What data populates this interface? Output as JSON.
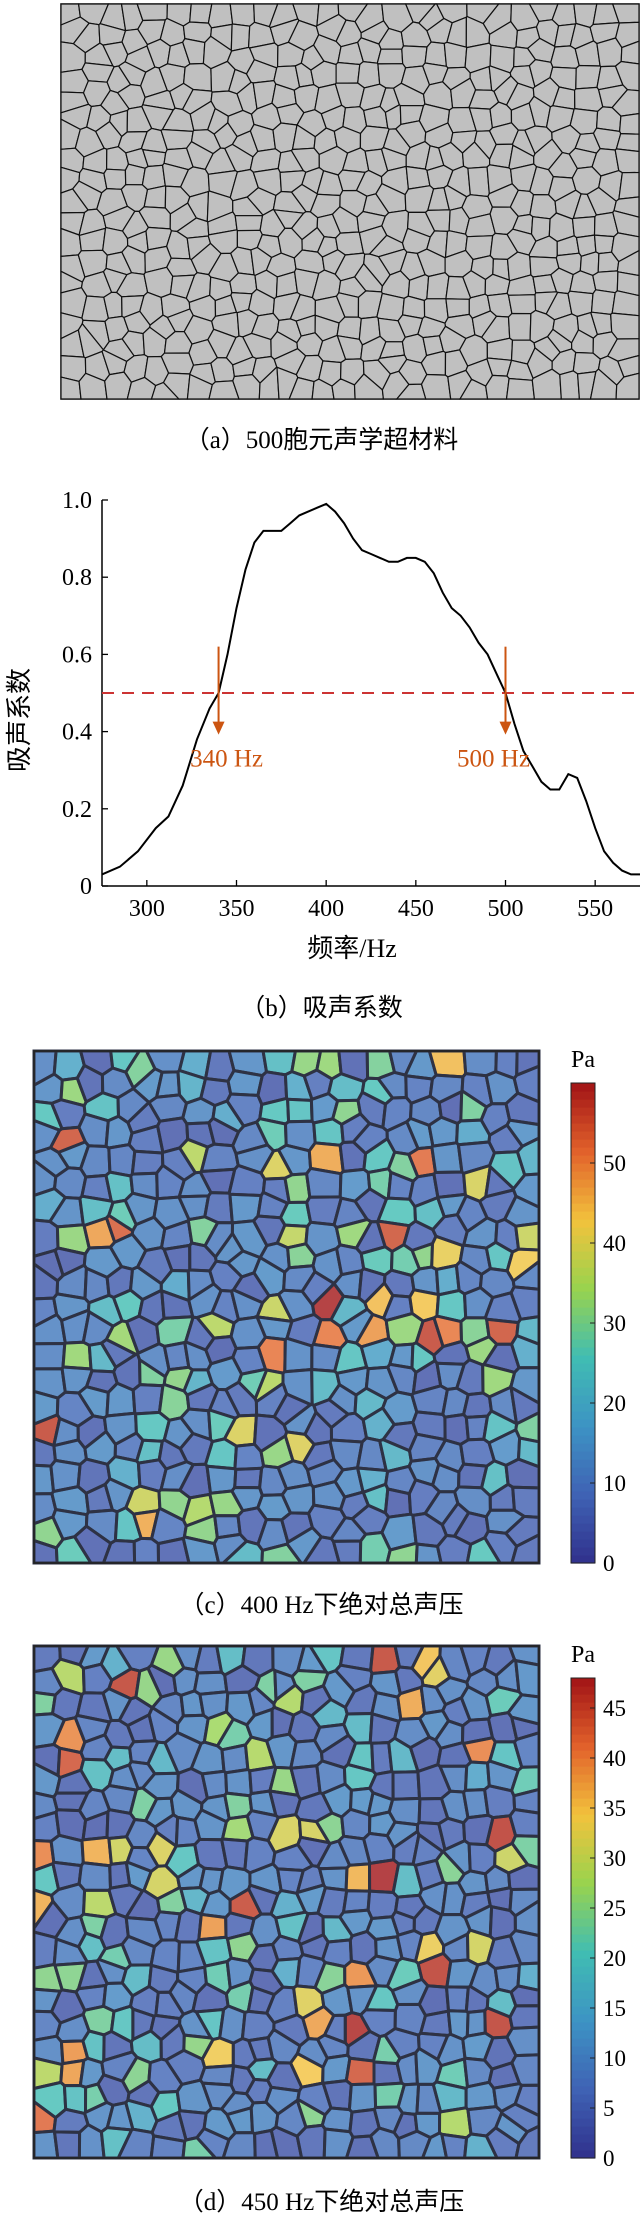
{
  "panel_a": {
    "caption": "（a）500胞元声学超材料",
    "fill_color": "#c0c0c0",
    "edge_color": "#111111"
  },
  "chart_data": [
    {
      "type": "line",
      "caption": "（b）吸声系数",
      "xlabel": "频率/Hz",
      "ylabel": "吸声系数",
      "xlim": [
        275,
        575
      ],
      "ylim": [
        0,
        1.0
      ],
      "xticks": [
        300,
        350,
        400,
        450,
        500,
        550
      ],
      "yticks": [
        0,
        0.2,
        0.4,
        0.6,
        0.8,
        1.0
      ],
      "ytick_labels": [
        "0",
        "0.2",
        "0.4",
        "0.6",
        "0.8",
        "1.0"
      ],
      "grid": false,
      "series": [
        {
          "color": "#000000",
          "x": [
            275,
            285,
            295,
            305,
            312,
            320,
            328,
            335,
            340,
            345,
            350,
            355,
            360,
            365,
            370,
            375,
            380,
            385,
            390,
            395,
            400,
            405,
            410,
            415,
            420,
            425,
            430,
            435,
            440,
            445,
            450,
            455,
            460,
            465,
            470,
            475,
            480,
            485,
            490,
            495,
            500,
            505,
            510,
            515,
            520,
            525,
            530,
            535,
            540,
            545,
            550,
            555,
            560,
            565,
            570,
            575
          ],
          "y": [
            0.03,
            0.05,
            0.09,
            0.15,
            0.18,
            0.26,
            0.38,
            0.46,
            0.5,
            0.6,
            0.72,
            0.82,
            0.89,
            0.92,
            0.92,
            0.92,
            0.94,
            0.96,
            0.97,
            0.98,
            0.99,
            0.97,
            0.94,
            0.9,
            0.87,
            0.86,
            0.85,
            0.84,
            0.84,
            0.85,
            0.85,
            0.84,
            0.81,
            0.76,
            0.72,
            0.7,
            0.67,
            0.63,
            0.6,
            0.55,
            0.5,
            0.42,
            0.35,
            0.31,
            0.27,
            0.25,
            0.25,
            0.29,
            0.28,
            0.22,
            0.15,
            0.09,
            0.06,
            0.04,
            0.03,
            0.03
          ]
        }
      ],
      "reference_line": {
        "y": 0.5,
        "color": "#cc3333",
        "style": "dashed"
      },
      "annotations": [
        {
          "x": 340,
          "label": "340 Hz",
          "color": "#cc5511"
        },
        {
          "x": 500,
          "label": "500 Hz",
          "color": "#cc5511"
        }
      ]
    },
    {
      "type": "heatmap",
      "caption": "（c）400 Hz下绝对总声压",
      "colorbar_label": "Pa",
      "colorbar_range": [
        0,
        60
      ],
      "colorbar_ticks": [
        "0",
        "10",
        "20",
        "30",
        "40",
        "50"
      ],
      "colormap": [
        "#30308c",
        "#3f62b4",
        "#3d93c4",
        "#40bdb3",
        "#98d34e",
        "#f2c23c",
        "#e2622b",
        "#a11316"
      ]
    },
    {
      "type": "heatmap",
      "caption": "（d）450 Hz下绝对总声压",
      "colorbar_label": "Pa",
      "colorbar_range": [
        0,
        48
      ],
      "colorbar_ticks": [
        "0",
        "5",
        "10",
        "15",
        "20",
        "25",
        "30",
        "35",
        "40",
        "45"
      ],
      "colormap": [
        "#30308c",
        "#3f62b4",
        "#3d93c4",
        "#40bdb3",
        "#98d34e",
        "#f2c23c",
        "#e2622b",
        "#a11316"
      ]
    }
  ]
}
